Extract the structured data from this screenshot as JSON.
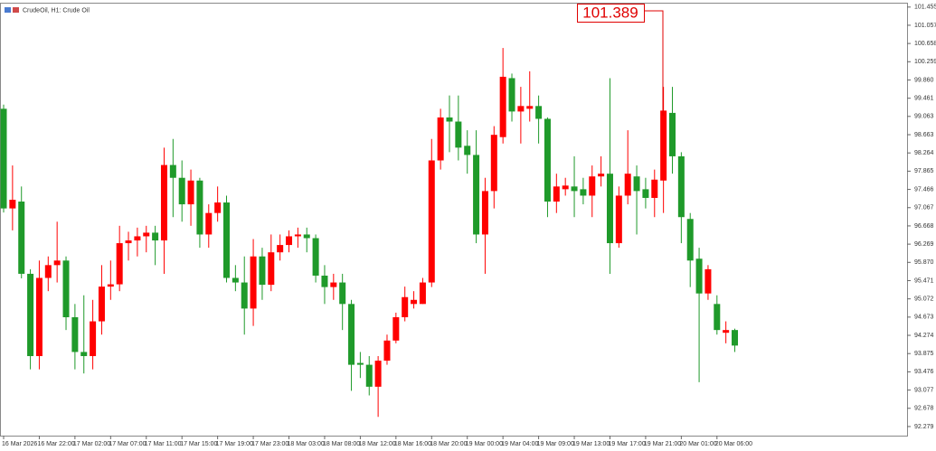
{
  "chart_data": {
    "type": "candlestick",
    "title": "CrudeOil, H1:  Crude Oil",
    "annotation": "101.389",
    "up_color": "#ff0000",
    "down_color": "#1f9a2a",
    "ylim": [
      92.08,
      101.55
    ],
    "yticks": [
      101.455,
      101.057,
      100.658,
      100.259,
      {
        "value": 99.86,
        "label": "99.860"
      },
      99.461,
      99.063,
      98.663,
      98.264,
      97.865,
      97.466,
      97.067,
      96.668,
      96.269,
      {
        "value": 95.87,
        "label": "95.870"
      },
      95.471,
      95.072,
      94.673,
      94.274,
      93.875,
      93.476,
      93.077,
      92.678,
      92.279
    ],
    "categories": [
      "16 Mar 2026",
      null,
      null,
      null,
      "16 Mar 22:00",
      null,
      null,
      null,
      "17 Mar 02:00",
      null,
      null,
      null,
      "17 Mar 07:00",
      null,
      null,
      null,
      "17 Mar 11:00",
      null,
      null,
      null,
      "17 Mar 15:00",
      null,
      null,
      null,
      "17 Mar 19:00",
      null,
      null,
      null,
      "17 Mar 23:00",
      null,
      null,
      null,
      "18 Mar 03:00",
      null,
      null,
      null,
      "18 Mar 08:00",
      null,
      null,
      null,
      "18 Mar 12:00",
      null,
      null,
      null,
      "18 Mar 16:00",
      null,
      null,
      null,
      "18 Mar 20:00",
      null,
      null,
      null,
      "19 Mar 00:00",
      null,
      null,
      null,
      "19 Mar 04:00",
      null,
      null,
      null,
      "19 Mar 09:00",
      null,
      null,
      null,
      "19 Mar 13:00",
      null,
      null,
      null,
      "19 Mar 17:00",
      null,
      null,
      null,
      "19 Mar 21:00",
      null,
      null,
      null,
      "20 Mar 01:00",
      null,
      null,
      null,
      "20 Mar 06:00",
      null,
      null
    ],
    "open": [
      99.23,
      97.05,
      97.2,
      95.62,
      93.82,
      95.53,
      95.81,
      95.91,
      94.67,
      93.91,
      93.82,
      94.58,
      95.34,
      95.39,
      96.29,
      96.35,
      96.44,
      96.52,
      96.35,
      98.0,
      97.72,
      97.14,
      97.66,
      96.48,
      96.95,
      97.18,
      95.53,
      95.43,
      94.86,
      96.0,
      95.38,
      96.09,
      96.25,
      96.44,
      96.48,
      96.4,
      95.58,
      95.33,
      95.43,
      94.96,
      93.67,
      93.63,
      93.15,
      93.72,
      94.16,
      94.67,
      94.96,
      94.96,
      95.43,
      98.1,
      99.04,
      98.95,
      98.42,
      98.22,
      96.48,
      97.43,
      98.61,
      99.9,
      99.17,
      99.23,
      99.29,
      99.01,
      97.2,
      97.47,
      97.53,
      97.47,
      97.33,
      97.75,
      97.81,
      96.29,
      97.33,
      97.75,
      97.47,
      97.28,
      97.66,
      99.14,
      98.19,
      96.82,
      95.95,
      95.19,
      94.96,
      94.33,
      94.39
    ],
    "high": [
      99.32,
      97.99,
      97.53,
      95.72,
      95.91,
      96.0,
      96.76,
      96.0,
      94.96,
      95.15,
      95.05,
      95.81,
      95.91,
      96.67,
      96.54,
      96.63,
      96.67,
      96.67,
      98.38,
      98.57,
      98.1,
      97.9,
      97.72,
      97.14,
      97.53,
      97.33,
      95.81,
      96.0,
      96.38,
      96.19,
      96.48,
      96.48,
      96.57,
      96.63,
      96.63,
      96.48,
      95.81,
      95.62,
      95.62,
      95.05,
      93.91,
      93.82,
      93.82,
      94.29,
      94.77,
      95.34,
      95.24,
      95.53,
      98.57,
      99.23,
      99.52,
      99.52,
      98.76,
      98.76,
      97.72,
      98.85,
      100.56,
      100.0,
      99.71,
      100.05,
      99.52,
      99.04,
      97.81,
      97.72,
      98.19,
      97.72,
      97.99,
      98.19,
      99.9,
      97.53,
      98.76,
      97.99,
      97.72,
      97.9,
      99.71,
      99.71,
      98.28,
      96.95,
      96.19,
      95.81,
      95.15,
      94.58,
      94.42
    ],
    "low": [
      96.96,
      96.57,
      95.52,
      93.53,
      93.53,
      95.24,
      95.43,
      94.39,
      93.53,
      93.44,
      93.53,
      94.29,
      95.05,
      95.24,
      95.91,
      96.0,
      96.09,
      95.81,
      95.62,
      96.86,
      96.76,
      96.67,
      96.19,
      96.19,
      96.76,
      95.43,
      95.24,
      94.29,
      94.48,
      95.05,
      95.24,
      95.91,
      96.09,
      96.19,
      96.09,
      95.43,
      94.96,
      95.05,
      94.39,
      93.06,
      93.34,
      92.96,
      92.49,
      93.63,
      94.1,
      94.58,
      94.86,
      94.96,
      95.33,
      97.9,
      98.28,
      98.1,
      97.81,
      96.29,
      95.62,
      97.05,
      98.47,
      98.95,
      98.47,
      98.95,
      98.47,
      96.86,
      96.95,
      97.33,
      96.86,
      97.14,
      96.86,
      97.53,
      95.62,
      96.19,
      97.14,
      96.48,
      97.05,
      96.86,
      96.95,
      97.81,
      96.29,
      95.33,
      93.25,
      95.05,
      94.29,
      94.1,
      93.91
    ],
    "close": [
      97.05,
      97.24,
      95.62,
      93.82,
      95.53,
      95.81,
      95.91,
      94.67,
      93.91,
      93.82,
      94.58,
      95.34,
      95.39,
      96.29,
      96.35,
      96.44,
      96.52,
      96.35,
      98.0,
      97.72,
      97.14,
      97.66,
      96.48,
      96.95,
      97.18,
      95.53,
      95.43,
      94.86,
      96.0,
      95.38,
      96.09,
      96.25,
      96.44,
      96.48,
      96.4,
      95.58,
      95.33,
      95.43,
      94.96,
      93.63,
      93.63,
      93.15,
      93.72,
      94.16,
      94.67,
      95.11,
      95.05,
      95.43,
      98.1,
      99.04,
      98.95,
      98.38,
      98.22,
      96.48,
      97.43,
      98.66,
      99.93,
      99.17,
      99.29,
      99.29,
      99.01,
      97.2,
      97.53,
      97.55,
      97.43,
      97.33,
      97.75,
      97.81,
      96.29,
      97.33,
      97.81,
      97.43,
      97.28,
      97.68,
      99.19,
      98.19,
      96.86,
      95.91,
      95.19,
      95.72,
      94.39,
      94.39,
      94.05
    ]
  }
}
